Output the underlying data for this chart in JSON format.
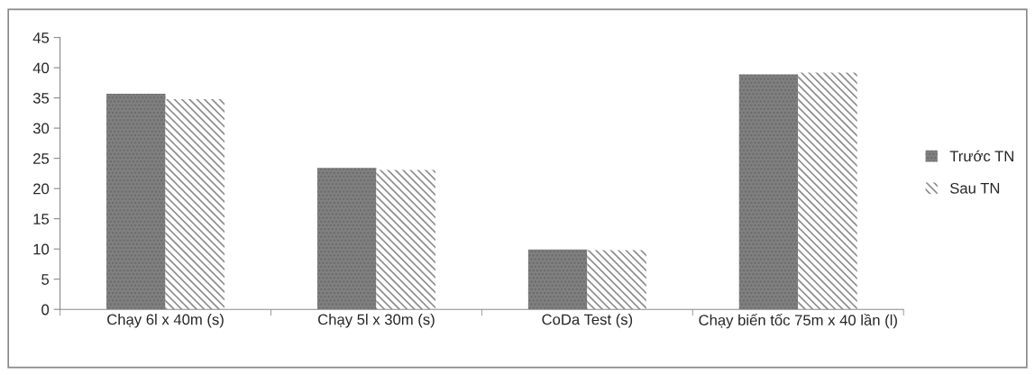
{
  "chart_data": {
    "type": "bar",
    "categories": [
      "Chạy 6l x 40m (s)",
      "Chạy 5l x 30m (s)",
      "CoDa Test (s)",
      "Chạy biến tốc 75m x 40 lần (l)"
    ],
    "series": [
      {
        "name": "Trước TN",
        "color": "#808080",
        "values": [
          35.7,
          23.4,
          9.9,
          38.9
        ]
      },
      {
        "name": "Sau TN",
        "color": "#8c8c8c",
        "values": [
          34.8,
          23.1,
          9.8,
          39.2
        ]
      }
    ],
    "ylim": [
      0,
      45
    ],
    "yticks": [
      0,
      5,
      10,
      15,
      20,
      25,
      30,
      35,
      40,
      45
    ],
    "grid": false,
    "legend": "right"
  }
}
